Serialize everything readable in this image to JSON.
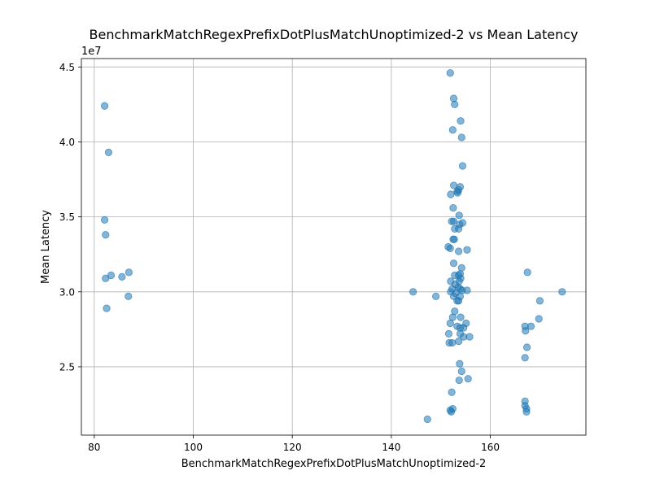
{
  "chart_data": {
    "type": "scatter",
    "title": "BenchmarkMatchRegexPrefixDotPlusMatchUnoptimized-2 vs Mean Latency",
    "xlabel": "BenchmarkMatchRegexPrefixDotPlusMatchUnoptimized-2",
    "ylabel": "Mean Latency",
    "y_offset_label": "1e7",
    "xlim": [
      77.4,
      179.3
    ],
    "ylim": [
      20440000,
      45560000
    ],
    "x_ticks": [
      {
        "value": 80,
        "label": "80"
      },
      {
        "value": 100,
        "label": "100"
      },
      {
        "value": 120,
        "label": "120"
      },
      {
        "value": 140,
        "label": "140"
      },
      {
        "value": 160,
        "label": "160"
      }
    ],
    "y_ticks": [
      {
        "value": 25000000,
        "label": "2.5"
      },
      {
        "value": 30000000,
        "label": "3.0"
      },
      {
        "value": 35000000,
        "label": "3.5"
      },
      {
        "value": 40000000,
        "label": "4.0"
      },
      {
        "value": 45000000,
        "label": "4.5"
      }
    ],
    "grid": true,
    "marker_color": "#1f77b4",
    "marker_alpha": 0.55,
    "points": [
      [
        82.1,
        42400000
      ],
      [
        82.9,
        39300000
      ],
      [
        82.1,
        34800000
      ],
      [
        82.3,
        33800000
      ],
      [
        83.4,
        31100000
      ],
      [
        87.0,
        31300000
      ],
      [
        82.3,
        30900000
      ],
      [
        85.6,
        31000000
      ],
      [
        86.9,
        29700000
      ],
      [
        82.5,
        28900000
      ],
      [
        144.4,
        30000000
      ],
      [
        149.0,
        29700000
      ],
      [
        147.3,
        21500000
      ],
      [
        151.9,
        44600000
      ],
      [
        152.6,
        42900000
      ],
      [
        152.8,
        42500000
      ],
      [
        154.0,
        41400000
      ],
      [
        152.4,
        40800000
      ],
      [
        154.2,
        40300000
      ],
      [
        154.4,
        38400000
      ],
      [
        152.6,
        37100000
      ],
      [
        153.6,
        36800000
      ],
      [
        153.9,
        37000000
      ],
      [
        153.3,
        36700000
      ],
      [
        152.0,
        36500000
      ],
      [
        153.4,
        36600000
      ],
      [
        152.5,
        35600000
      ],
      [
        153.7,
        35100000
      ],
      [
        152.2,
        34700000
      ],
      [
        152.6,
        34700000
      ],
      [
        154.4,
        34600000
      ],
      [
        153.8,
        34500000
      ],
      [
        152.8,
        34200000
      ],
      [
        153.6,
        34200000
      ],
      [
        152.5,
        33500000
      ],
      [
        152.7,
        33500000
      ],
      [
        151.5,
        33000000
      ],
      [
        151.9,
        32900000
      ],
      [
        153.6,
        32700000
      ],
      [
        155.3,
        32800000
      ],
      [
        152.6,
        31900000
      ],
      [
        154.2,
        31600000
      ],
      [
        153.9,
        31200000
      ],
      [
        153.6,
        31100000
      ],
      [
        152.8,
        31100000
      ],
      [
        154.0,
        30900000
      ],
      [
        152.0,
        30700000
      ],
      [
        153.7,
        30700000
      ],
      [
        152.9,
        30500000
      ],
      [
        153.5,
        30300000
      ],
      [
        152.3,
        30200000
      ],
      [
        153.9,
        30200000
      ],
      [
        154.3,
        30100000
      ],
      [
        155.3,
        30100000
      ],
      [
        152.0,
        30000000
      ],
      [
        153.0,
        29900000
      ],
      [
        152.6,
        29700000
      ],
      [
        153.9,
        29700000
      ],
      [
        153.3,
        29400000
      ],
      [
        153.6,
        29400000
      ],
      [
        152.8,
        28700000
      ],
      [
        152.4,
        28300000
      ],
      [
        154.0,
        28300000
      ],
      [
        151.9,
        27900000
      ],
      [
        155.1,
        27900000
      ],
      [
        153.3,
        27700000
      ],
      [
        153.9,
        27600000
      ],
      [
        154.6,
        27600000
      ],
      [
        151.6,
        27200000
      ],
      [
        153.9,
        27200000
      ],
      [
        154.6,
        27000000
      ],
      [
        155.8,
        27000000
      ],
      [
        151.7,
        26600000
      ],
      [
        152.3,
        26600000
      ],
      [
        153.6,
        26700000
      ],
      [
        153.8,
        25200000
      ],
      [
        154.2,
        24700000
      ],
      [
        155.5,
        24200000
      ],
      [
        153.7,
        24100000
      ],
      [
        152.2,
        23300000
      ],
      [
        152.4,
        22200000
      ],
      [
        151.9,
        22100000
      ],
      [
        152.1,
        22000000
      ],
      [
        167.5,
        31300000
      ],
      [
        174.5,
        30000000
      ],
      [
        170.0,
        29400000
      ],
      [
        169.8,
        28200000
      ],
      [
        167.0,
        27700000
      ],
      [
        167.1,
        27400000
      ],
      [
        168.2,
        27700000
      ],
      [
        167.4,
        26300000
      ],
      [
        167.0,
        25600000
      ],
      [
        167.0,
        22700000
      ],
      [
        167.0,
        22400000
      ],
      [
        167.3,
        22200000
      ],
      [
        167.3,
        22000000
      ]
    ]
  }
}
